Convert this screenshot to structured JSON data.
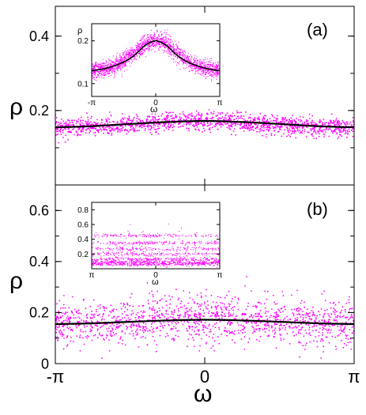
{
  "figure": {
    "x_label": "ω",
    "x_ticks": [
      "-π",
      "0",
      "π"
    ]
  },
  "chart_data": [
    {
      "id": "main-a",
      "type": "scatter",
      "panel_label": "(a)",
      "ylabel": "ρ",
      "xlim": [
        -3.14159,
        3.14159
      ],
      "ylim": [
        0,
        0.48
      ],
      "yticks": [
        0.2,
        0.4
      ],
      "ytick_labels": [
        "0.2",
        "0.4"
      ],
      "grid": false,
      "series": [
        {
          "kind": "points",
          "color": "#ff00ff",
          "center": 0.155,
          "amplitude": 0.017,
          "spread": 0.012,
          "count": 1500
        },
        {
          "kind": "line",
          "color": "#000000",
          "x": [
            -3.14,
            -2.36,
            -1.57,
            -0.79,
            0,
            0.79,
            1.57,
            2.36,
            3.14
          ],
          "y": [
            0.155,
            0.158,
            0.164,
            0.169,
            0.172,
            0.169,
            0.164,
            0.158,
            0.155
          ]
        }
      ]
    },
    {
      "id": "inset-a",
      "type": "scatter",
      "ylabel": "ρ",
      "xlabel": "ω",
      "xlim": [
        -3.14159,
        3.14159
      ],
      "ylim": [
        0.07,
        0.24
      ],
      "xticks": [
        "-π",
        "0",
        "π"
      ],
      "yticks": [
        0.1,
        0.2
      ],
      "ytick_labels": [
        "0.1",
        "0.2"
      ],
      "series": [
        {
          "kind": "points",
          "color": "#ff00ff",
          "center": 0.13,
          "amplitude": 0.07,
          "spread": 0.01,
          "count": 1800
        },
        {
          "kind": "line",
          "color": "#000000",
          "x": [
            -3.14,
            -2.5,
            -2.0,
            -1.5,
            -1.0,
            -0.5,
            0,
            0.5,
            1.0,
            1.5,
            2.0,
            2.5,
            3.14
          ],
          "y": [
            0.13,
            0.135,
            0.142,
            0.152,
            0.168,
            0.19,
            0.2,
            0.19,
            0.168,
            0.152,
            0.142,
            0.135,
            0.13
          ]
        }
      ]
    },
    {
      "id": "main-b",
      "type": "scatter",
      "panel_label": "(b)",
      "ylabel": "ρ",
      "xlabel": "ω",
      "xlim": [
        -3.14159,
        3.14159
      ],
      "ylim": [
        0,
        0.7
      ],
      "yticks": [
        0,
        0.2,
        0.4,
        0.6
      ],
      "ytick_labels": [
        "0",
        "0.2",
        "0.4",
        "0.6"
      ],
      "xticks": [
        "-π",
        "0",
        "π"
      ],
      "series": [
        {
          "kind": "points",
          "color": "#ff00ff",
          "center": 0.16,
          "amplitude": 0.015,
          "spread": 0.045,
          "count": 1400
        },
        {
          "kind": "line",
          "color": "#000000",
          "x": [
            -3.14,
            -2.36,
            -1.57,
            -0.79,
            0,
            0.79,
            1.57,
            2.36,
            3.14
          ],
          "y": [
            0.155,
            0.158,
            0.164,
            0.169,
            0.172,
            0.169,
            0.164,
            0.158,
            0.155
          ]
        }
      ]
    },
    {
      "id": "inset-b",
      "type": "scatter",
      "ylabel": "ρ",
      "xlabel": "ω",
      "xlim": [
        -3.14159,
        3.14159
      ],
      "ylim": [
        0,
        0.9
      ],
      "xticks": [
        "π",
        "0",
        "π"
      ],
      "yticks": [
        0.2,
        0.4,
        0.6,
        0.8
      ],
      "ytick_labels": [
        "0.2",
        "0.4",
        "0.6",
        "0.8"
      ],
      "series": [
        {
          "kind": "points",
          "color": "#ff00ff",
          "structure": "bands",
          "band_levels": [
            0.06,
            0.13,
            0.2,
            0.27,
            0.35,
            0.45
          ],
          "peaks_at": [
            -2.0,
            -1.25,
            -0.6,
            0.6,
            1.25,
            2.0
          ],
          "count": 1600
        }
      ]
    }
  ]
}
